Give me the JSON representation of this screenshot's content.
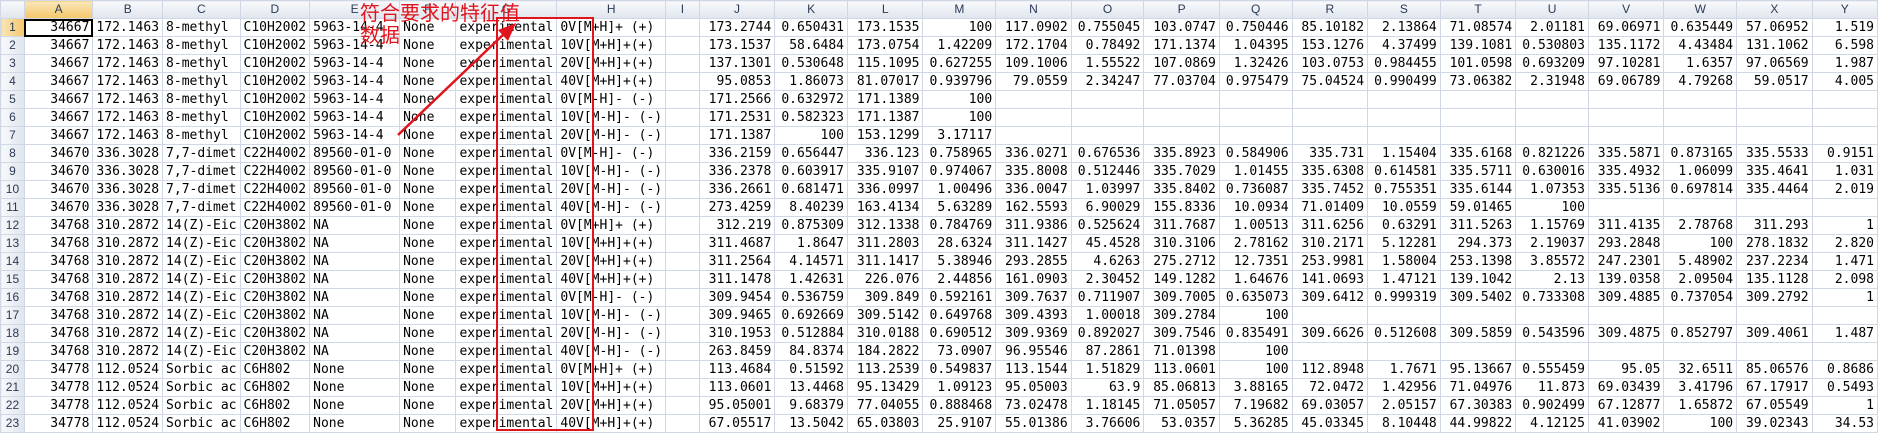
{
  "columns": [
    "A",
    "B",
    "C",
    "D",
    "E",
    "F",
    "G",
    "H",
    "I",
    "J",
    "K",
    "L",
    "M",
    "N",
    "O",
    "P",
    "Q",
    "R",
    "S",
    "T",
    "U",
    "V",
    "W",
    "X",
    "Y"
  ],
  "annotation": {
    "line1": "符合要求的特征值",
    "line2": "数据",
    "color": "#e0141c"
  },
  "rows": [
    [
      "1",
      "34667",
      "172.1463",
      "8-methyl",
      "C10H2002",
      "5963-14-4",
      "None",
      "experimental",
      "0V[M+H]+ (+)",
      "",
      "173.2744",
      "0.650431",
      "173.1535",
      "100",
      "117.0902",
      "0.755045",
      "103.0747",
      "0.750446",
      "85.10182",
      "2.13864",
      "71.08574",
      "2.01181",
      "69.06971",
      "0.635449",
      "57.06952",
      "1.519"
    ],
    [
      "2",
      "34667",
      "172.1463",
      "8-methyl",
      "C10H2002",
      "5963-14-4",
      "None",
      "experimental",
      "10V[M+H]+(+)",
      "",
      "173.1537",
      "58.6484",
      "173.0754",
      "1.42209",
      "172.1704",
      "0.78492",
      "171.1374",
      "1.04395",
      "153.1276",
      "4.37499",
      "139.1081",
      "0.530803",
      "135.1172",
      "4.43484",
      "131.1062",
      "6.598"
    ],
    [
      "3",
      "34667",
      "172.1463",
      "8-methyl",
      "C10H2002",
      "5963-14-4",
      "None",
      "experimental",
      "20V[M+H]+(+)",
      "",
      "137.1301",
      "0.530648",
      "115.1095",
      "0.627255",
      "109.1006",
      "1.55522",
      "107.0869",
      "1.32426",
      "103.0753",
      "0.984455",
      "101.0598",
      "0.693209",
      "97.10281",
      "1.6357",
      "97.06569",
      "1.987"
    ],
    [
      "4",
      "34667",
      "172.1463",
      "8-methyl",
      "C10H2002",
      "5963-14-4",
      "None",
      "experimental",
      "40V[M+H]+(+)",
      "",
      "95.0853",
      "1.86073",
      "81.07017",
      "0.939796",
      "79.0559",
      "2.34247",
      "77.03704",
      "0.975479",
      "75.04524",
      "0.990499",
      "73.06382",
      "2.31948",
      "69.06789",
      "4.79268",
      "59.0517",
      "4.005"
    ],
    [
      "5",
      "34667",
      "172.1463",
      "8-methyl",
      "C10H2002",
      "5963-14-4",
      "None",
      "experimental",
      "0V[M-H]- (-)",
      "",
      "171.2566",
      "0.632972",
      "171.1389",
      "100",
      "",
      "",
      "",
      "",
      "",
      "",
      "",
      "",
      "",
      "",
      "",
      ""
    ],
    [
      "6",
      "34667",
      "172.1463",
      "8-methyl",
      "C10H2002",
      "5963-14-4",
      "None",
      "experimental",
      "10V[M-H]- (-)",
      "",
      "171.2531",
      "0.582323",
      "171.1387",
      "100",
      "",
      "",
      "",
      "",
      "",
      "",
      "",
      "",
      "",
      "",
      "",
      ""
    ],
    [
      "7",
      "34667",
      "172.1463",
      "8-methyl",
      "C10H2002",
      "5963-14-4",
      "None",
      "experimental",
      "20V[M-H]- (-)",
      "",
      "171.1387",
      "100",
      "153.1299",
      "3.17117",
      "",
      "",
      "",
      "",
      "",
      "",
      "",
      "",
      "",
      "",
      "",
      ""
    ],
    [
      "8",
      "34670",
      "336.3028",
      "7,7-dimet",
      "C22H4002",
      "89560-01-0",
      "None",
      "experimental",
      "0V[M-H]- (-)",
      "",
      "336.2159",
      "0.656447",
      "336.123",
      "0.758965",
      "336.0271",
      "0.676536",
      "335.8923",
      "0.584906",
      "335.731",
      "1.15404",
      "335.6168",
      "0.821226",
      "335.5871",
      "0.873165",
      "335.5533",
      "0.9151"
    ],
    [
      "9",
      "34670",
      "336.3028",
      "7,7-dimet",
      "C22H4002",
      "89560-01-0",
      "None",
      "experimental",
      "10V[M-H]- (-)",
      "",
      "336.2378",
      "0.603917",
      "335.9107",
      "0.974067",
      "335.8008",
      "0.512446",
      "335.7029",
      "1.01455",
      "335.6308",
      "0.614581",
      "335.5711",
      "0.630016",
      "335.4932",
      "1.06099",
      "335.4641",
      "1.031"
    ],
    [
      "10",
      "34670",
      "336.3028",
      "7,7-dimet",
      "C22H4002",
      "89560-01-0",
      "None",
      "experimental",
      "20V[M-H]- (-)",
      "",
      "336.2661",
      "0.681471",
      "336.0997",
      "1.00496",
      "336.0047",
      "1.03997",
      "335.8402",
      "0.736087",
      "335.7452",
      "0.755351",
      "335.6144",
      "1.07353",
      "335.5136",
      "0.697814",
      "335.4464",
      "2.019"
    ],
    [
      "11",
      "34670",
      "336.3028",
      "7,7-dimet",
      "C22H4002",
      "89560-01-0",
      "None",
      "experimental",
      "40V[M-H]- (-)",
      "",
      "273.4259",
      "8.40239",
      "163.4134",
      "5.63289",
      "162.5593",
      "6.90029",
      "155.8336",
      "10.0934",
      "71.01409",
      "10.0559",
      "59.01465",
      "100",
      "",
      "",
      "",
      ""
    ],
    [
      "12",
      "34768",
      "310.2872",
      "14(Z)-Eic",
      "C20H3802",
      "NA",
      "None",
      "experimental",
      "0V[M+H]+ (+)",
      "",
      "312.219",
      "0.875309",
      "312.1338",
      "0.784769",
      "311.9386",
      "0.525624",
      "311.7687",
      "1.00513",
      "311.6256",
      "0.63291",
      "311.5263",
      "1.15769",
      "311.4135",
      "2.78768",
      "311.293",
      "1"
    ],
    [
      "13",
      "34768",
      "310.2872",
      "14(Z)-Eic",
      "C20H3802",
      "NA",
      "None",
      "experimental",
      "10V[M+H]+(+)",
      "",
      "311.4687",
      "1.8647",
      "311.2803",
      "28.6324",
      "311.1427",
      "45.4528",
      "310.3106",
      "2.78162",
      "310.2171",
      "5.12281",
      "294.373",
      "2.19037",
      "293.2848",
      "100",
      "278.1832",
      "2.820"
    ],
    [
      "14",
      "34768",
      "310.2872",
      "14(Z)-Eic",
      "C20H3802",
      "NA",
      "None",
      "experimental",
      "20V[M+H]+(+)",
      "",
      "311.2564",
      "4.14571",
      "311.1417",
      "5.38946",
      "293.2855",
      "4.6263",
      "275.2712",
      "12.7351",
      "253.9981",
      "1.58004",
      "253.1398",
      "3.85572",
      "247.2301",
      "5.48902",
      "237.2234",
      "1.471"
    ],
    [
      "15",
      "34768",
      "310.2872",
      "14(Z)-Eic",
      "C20H3802",
      "NA",
      "None",
      "experimental",
      "40V[M+H]+(+)",
      "",
      "311.1478",
      "1.42631",
      "226.076",
      "2.44856",
      "161.0903",
      "2.30452",
      "149.1282",
      "1.64676",
      "141.0693",
      "1.47121",
      "139.1042",
      "2.13",
      "139.0358",
      "2.09504",
      "135.1128",
      "2.098"
    ],
    [
      "16",
      "34768",
      "310.2872",
      "14(Z)-Eic",
      "C20H3802",
      "NA",
      "None",
      "experimental",
      "0V[M-H]- (-)",
      "",
      "309.9454",
      "0.536759",
      "309.849",
      "0.592161",
      "309.7637",
      "0.711907",
      "309.7005",
      "0.635073",
      "309.6412",
      "0.999319",
      "309.5402",
      "0.733308",
      "309.4885",
      "0.737054",
      "309.2792",
      "1"
    ],
    [
      "17",
      "34768",
      "310.2872",
      "14(Z)-Eic",
      "C20H3802",
      "NA",
      "None",
      "experimental",
      "10V[M-H]- (-)",
      "",
      "309.9465",
      "0.692669",
      "309.5142",
      "0.649768",
      "309.4393",
      "1.00018",
      "309.2784",
      "100",
      "",
      "",
      "",
      "",
      "",
      "",
      "",
      ""
    ],
    [
      "18",
      "34768",
      "310.2872",
      "14(Z)-Eic",
      "C20H3802",
      "NA",
      "None",
      "experimental",
      "20V[M-H]- (-)",
      "",
      "310.1953",
      "0.512884",
      "310.0188",
      "0.690512",
      "309.9369",
      "0.892027",
      "309.7546",
      "0.835491",
      "309.6626",
      "0.512608",
      "309.5859",
      "0.543596",
      "309.4875",
      "0.852797",
      "309.4061",
      "1.487"
    ],
    [
      "19",
      "34768",
      "310.2872",
      "14(Z)-Eic",
      "C20H3802",
      "NA",
      "None",
      "experimental",
      "40V[M-H]- (-)",
      "",
      "263.8459",
      "84.8374",
      "184.2822",
      "73.0907",
      "96.95546",
      "87.2861",
      "71.01398",
      "100",
      "",
      "",
      "",
      "",
      "",
      "",
      "",
      ""
    ],
    [
      "20",
      "34778",
      "112.0524",
      "Sorbic ac",
      "C6H802",
      "None",
      "None",
      "experimental",
      "0V[M+H]+ (+)",
      "",
      "113.4684",
      "0.51592",
      "113.2539",
      "0.549837",
      "113.1544",
      "1.51829",
      "113.0601",
      "100",
      "112.8948",
      "1.7671",
      "95.13667",
      "0.555459",
      "95.05",
      "32.6511",
      "85.06576",
      "0.8686"
    ],
    [
      "21",
      "34778",
      "112.0524",
      "Sorbic ac",
      "C6H802",
      "None",
      "None",
      "experimental",
      "10V[M+H]+(+)",
      "",
      "113.0601",
      "13.4468",
      "95.13429",
      "1.09123",
      "95.05003",
      "63.9",
      "85.06813",
      "3.88165",
      "72.0472",
      "1.42956",
      "71.04976",
      "11.873",
      "69.03439",
      "3.41796",
      "67.17917",
      "0.5493"
    ],
    [
      "22",
      "34778",
      "112.0524",
      "Sorbic ac",
      "C6H802",
      "None",
      "None",
      "experimental",
      "20V[M+H]+(+)",
      "",
      "95.05001",
      "9.68379",
      "77.04055",
      "0.888468",
      "73.02478",
      "1.18145",
      "71.05057",
      "7.19682",
      "69.03057",
      "2.05157",
      "67.30383",
      "0.902499",
      "67.12877",
      "1.65872",
      "67.05549",
      "1"
    ],
    [
      "23",
      "34778",
      "112.0524",
      "Sorbic ac",
      "C6H802",
      "None",
      "None",
      "experimental",
      "40V[M+H]+(+)",
      "",
      "67.05517",
      "13.5042",
      "65.03803",
      "25.9107",
      "55.01386",
      "3.76606",
      "53.0357",
      "5.36285",
      "45.03345",
      "8.10448",
      "44.99822",
      "4.12125",
      "41.03902",
      "100",
      "39.02343",
      "34.53"
    ]
  ]
}
